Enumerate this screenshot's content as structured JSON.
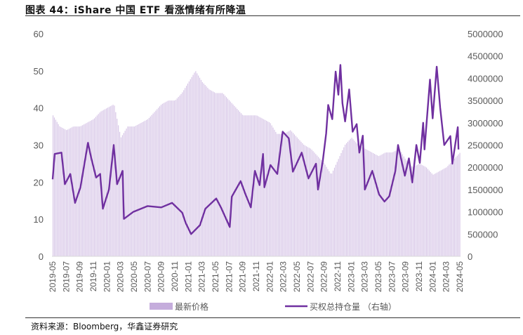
{
  "title": "图表 44：iShare 中国 ETF 看涨情绪有所降温",
  "source": "资料来源：Bloomberg，华鑫证券研究",
  "chart_data": {
    "type": "bar+line",
    "title": "图表 44：iShare 中国 ETF 看涨情绪有所降温",
    "x_start": "2019-05",
    "x_unit": "months since 2019-05",
    "x_range": [
      0,
      60
    ],
    "x_tick_labels": [
      "2019-05",
      "2019-07",
      "2019-09",
      "2019-11",
      "2020-01",
      "2020-03",
      "2020-05",
      "2020-07",
      "2020-09",
      "2020-11",
      "2021-01",
      "2021-03",
      "2021-05",
      "2021-07",
      "2021-09",
      "2021-11",
      "2022-01",
      "2022-03",
      "2022-05",
      "2022-07",
      "2022-09",
      "2022-11",
      "2023-01",
      "2023-03",
      "2023-05",
      "2023-07",
      "2023-09",
      "2023-11",
      "2024-01",
      "2024-03",
      "2024-05"
    ],
    "left_axis": {
      "ylim": [
        0,
        60
      ],
      "ticks": [
        "0",
        "10",
        "20",
        "30",
        "40",
        "50",
        "60"
      ]
    },
    "right_axis": {
      "ylim": [
        0,
        5000000
      ],
      "ticks": [
        "0",
        "500000",
        "1000000",
        "1500000",
        "2000000",
        "2500000",
        "3000000",
        "3500000",
        "4000000",
        "4500000",
        "5000000"
      ]
    },
    "grid": false,
    "legend_position": "bottom",
    "series": [
      {
        "name": "最新价格",
        "type": "bar",
        "axis": "left",
        "color": "#c5addc",
        "monthly_values": [
          38,
          35,
          34,
          35,
          35,
          36,
          37,
          39,
          40,
          41,
          32,
          35,
          35,
          36,
          37,
          39,
          41,
          42,
          42,
          44,
          47,
          50,
          47,
          45,
          44,
          44,
          42,
          40,
          38,
          38,
          38,
          37,
          36,
          33,
          33,
          34,
          32,
          30,
          29,
          27,
          25,
          22,
          26,
          30,
          32,
          30,
          29,
          28,
          27,
          28,
          28,
          29,
          26,
          24,
          25,
          24,
          22,
          23,
          24,
          26,
          28
        ]
      },
      {
        "name": "买权总持仓量 （右轴）",
        "type": "line",
        "axis": "right",
        "color": "#7030a0",
        "points": [
          [
            0,
            1730000
          ],
          [
            0.3,
            2300000
          ],
          [
            1.3,
            2330000
          ],
          [
            1.8,
            1620000
          ],
          [
            2.6,
            1850000
          ],
          [
            3.3,
            1200000
          ],
          [
            4.1,
            1550000
          ],
          [
            5.2,
            2550000
          ],
          [
            5.7,
            2200000
          ],
          [
            6.4,
            1770000
          ],
          [
            7.0,
            1850000
          ],
          [
            7.4,
            1070000
          ],
          [
            8.3,
            1500000
          ],
          [
            9.0,
            2500000
          ],
          [
            9.5,
            1620000
          ],
          [
            10.3,
            1920000
          ],
          [
            10.5,
            840000
          ],
          [
            11.9,
            1000000
          ],
          [
            14.0,
            1130000
          ],
          [
            16.0,
            1100000
          ],
          [
            17.6,
            1200000
          ],
          [
            19.1,
            980000
          ],
          [
            19.6,
            750000
          ],
          [
            20.4,
            500000
          ],
          [
            21.7,
            700000
          ],
          [
            22.5,
            1070000
          ],
          [
            24.1,
            1300000
          ],
          [
            24.8,
            1100000
          ],
          [
            26.1,
            660000
          ],
          [
            26.4,
            1340000
          ],
          [
            27.7,
            1690000
          ],
          [
            28.4,
            1400000
          ],
          [
            29.2,
            1100000
          ],
          [
            29.8,
            1920000
          ],
          [
            30.5,
            1600000
          ],
          [
            31.0,
            2300000
          ],
          [
            31.2,
            1550000
          ],
          [
            32.1,
            2050000
          ],
          [
            33.1,
            1850000
          ],
          [
            33.9,
            2800000
          ],
          [
            34.8,
            2650000
          ],
          [
            35.4,
            1900000
          ],
          [
            36.7,
            2330000
          ],
          [
            37.7,
            1750000
          ],
          [
            38.8,
            2080000
          ],
          [
            39.1,
            1500000
          ],
          [
            39.8,
            2130000
          ],
          [
            40.3,
            2760000
          ],
          [
            40.6,
            3400000
          ],
          [
            41.2,
            3080000
          ],
          [
            41.7,
            4150000
          ],
          [
            42.1,
            3630000
          ],
          [
            42.4,
            4300000
          ],
          [
            42.7,
            3440000
          ],
          [
            43.1,
            3030000
          ],
          [
            43.7,
            3750000
          ],
          [
            44.2,
            2800000
          ],
          [
            44.8,
            2970000
          ],
          [
            45.2,
            2330000
          ],
          [
            45.7,
            2710000
          ],
          [
            46.0,
            1500000
          ],
          [
            47.1,
            1920000
          ],
          [
            48.1,
            1390000
          ],
          [
            48.9,
            1230000
          ],
          [
            49.6,
            1350000
          ],
          [
            50.5,
            1920000
          ],
          [
            50.9,
            2500000
          ],
          [
            51.9,
            1810000
          ],
          [
            52.5,
            2200000
          ],
          [
            53.0,
            1660000
          ],
          [
            53.6,
            2500000
          ],
          [
            54.1,
            2100000
          ],
          [
            54.6,
            3000000
          ],
          [
            54.8,
            2400000
          ],
          [
            55.6,
            3970000
          ],
          [
            56.0,
            3100000
          ],
          [
            56.6,
            4260000
          ],
          [
            57.1,
            3340000
          ],
          [
            57.7,
            2500000
          ],
          [
            58.6,
            2700000
          ],
          [
            58.9,
            2080000
          ],
          [
            59.7,
            2900000
          ],
          [
            59.8,
            2400000
          ]
        ]
      }
    ]
  }
}
